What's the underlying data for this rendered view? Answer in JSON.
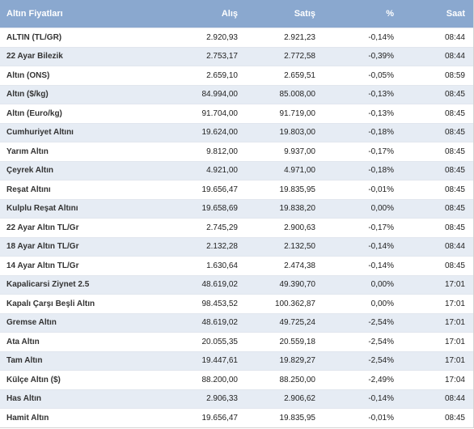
{
  "header": {
    "name": "Altın Fiyatları",
    "buy": "Alış",
    "sell": "Satış",
    "change": "%",
    "time": "Saat"
  },
  "rows": [
    {
      "name": "ALTIN (TL/GR)",
      "buy": "2.920,93",
      "sell": "2.921,23",
      "change": "-0,14%",
      "time": "08:44"
    },
    {
      "name": "22 Ayar Bilezik",
      "buy": "2.753,17",
      "sell": "2.772,58",
      "change": "-0,39%",
      "time": "08:44"
    },
    {
      "name": "Altın (ONS)",
      "buy": "2.659,10",
      "sell": "2.659,51",
      "change": "-0,05%",
      "time": "08:59"
    },
    {
      "name": "Altın ($/kg)",
      "buy": "84.994,00",
      "sell": "85.008,00",
      "change": "-0,13%",
      "time": "08:45"
    },
    {
      "name": "Altın (Euro/kg)",
      "buy": "91.704,00",
      "sell": "91.719,00",
      "change": "-0,13%",
      "time": "08:45"
    },
    {
      "name": "Cumhuriyet Altını",
      "buy": "19.624,00",
      "sell": "19.803,00",
      "change": "-0,18%",
      "time": "08:45"
    },
    {
      "name": "Yarım Altın",
      "buy": "9.812,00",
      "sell": "9.937,00",
      "change": "-0,17%",
      "time": "08:45"
    },
    {
      "name": "Çeyrek Altın",
      "buy": "4.921,00",
      "sell": "4.971,00",
      "change": "-0,18%",
      "time": "08:45"
    },
    {
      "name": "Reşat Altını",
      "buy": "19.656,47",
      "sell": "19.835,95",
      "change": "-0,01%",
      "time": "08:45"
    },
    {
      "name": "Kulplu Reşat Altını",
      "buy": "19.658,69",
      "sell": "19.838,20",
      "change": "0,00%",
      "time": "08:45"
    },
    {
      "name": "22 Ayar Altın TL/Gr",
      "buy": "2.745,29",
      "sell": "2.900,63",
      "change": "-0,17%",
      "time": "08:45"
    },
    {
      "name": "18 Ayar Altın TL/Gr",
      "buy": "2.132,28",
      "sell": "2.132,50",
      "change": "-0,14%",
      "time": "08:44"
    },
    {
      "name": "14 Ayar Altın TL/Gr",
      "buy": "1.630,64",
      "sell": "2.474,38",
      "change": "-0,14%",
      "time": "08:45"
    },
    {
      "name": "Kapalicarsi Ziynet 2.5",
      "buy": "48.619,02",
      "sell": "49.390,70",
      "change": "0,00%",
      "time": "17:01"
    },
    {
      "name": "Kapalı Çarşı Beşli Altın",
      "buy": "98.453,52",
      "sell": "100.362,87",
      "change": "0,00%",
      "time": "17:01"
    },
    {
      "name": "Gremse Altın",
      "buy": "48.619,02",
      "sell": "49.725,24",
      "change": "-2,54%",
      "time": "17:01"
    },
    {
      "name": "Ata Altın",
      "buy": "20.055,35",
      "sell": "20.559,18",
      "change": "-2,54%",
      "time": "17:01"
    },
    {
      "name": "Tam Altın",
      "buy": "19.447,61",
      "sell": "19.829,27",
      "change": "-2,54%",
      "time": "17:01"
    },
    {
      "name": "Külçe Altın ($)",
      "buy": "88.200,00",
      "sell": "88.250,00",
      "change": "-2,49%",
      "time": "17:04"
    },
    {
      "name": "Has Altın",
      "buy": "2.906,33",
      "sell": "2.906,62",
      "change": "-0,14%",
      "time": "08:44"
    },
    {
      "name": "Hamit Altın",
      "buy": "19.656,47",
      "sell": "19.835,95",
      "change": "-0,01%",
      "time": "08:45"
    }
  ]
}
